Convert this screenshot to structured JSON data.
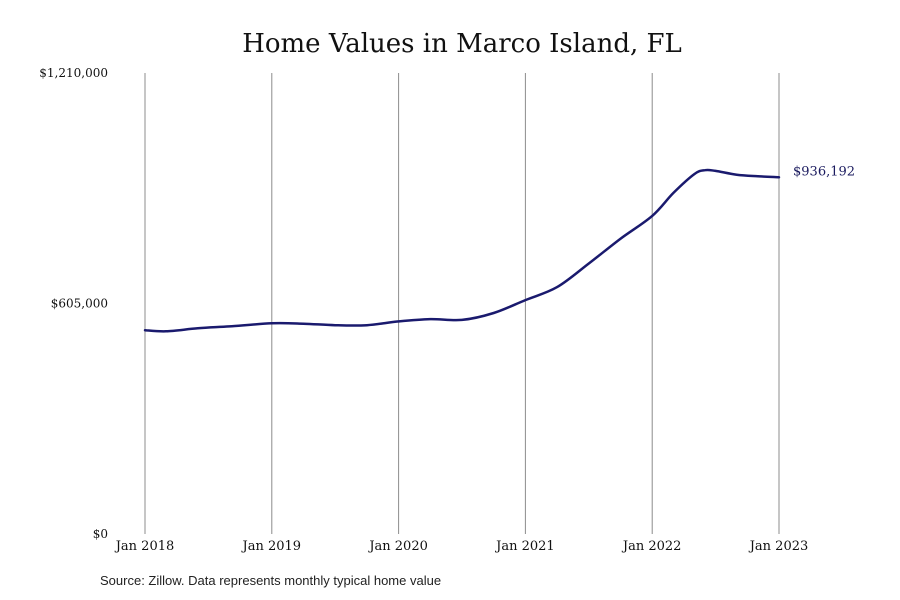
{
  "chart_data": {
    "type": "line",
    "title": "Home Values in Marco Island, FL",
    "xlabel": "",
    "ylabel": "",
    "x_tick_labels": [
      "Jan 2018",
      "Jan 2019",
      "Jan 2020",
      "Jan 2021",
      "Jan 2022",
      "Jan 2023"
    ],
    "y_tick_labels": [
      "$0",
      "$605,000",
      "$1,210,000"
    ],
    "ylim": [
      0,
      1210000
    ],
    "xlim": [
      "2018-01",
      "2023-01"
    ],
    "grid": "vertical lines at each January",
    "series_color": "#1a1a6e",
    "series": [
      {
        "points": [
          {
            "date": "2018-01",
            "value": 535000
          },
          {
            "date": "2018-03",
            "value": 532000
          },
          {
            "date": "2018-06",
            "value": 540000
          },
          {
            "date": "2018-09",
            "value": 545000
          },
          {
            "date": "2019-01",
            "value": 553000
          },
          {
            "date": "2019-04",
            "value": 552000
          },
          {
            "date": "2019-07",
            "value": 548000
          },
          {
            "date": "2019-10",
            "value": 548000
          },
          {
            "date": "2020-01",
            "value": 558000
          },
          {
            "date": "2020-04",
            "value": 564000
          },
          {
            "date": "2020-07",
            "value": 562000
          },
          {
            "date": "2020-10",
            "value": 580000
          },
          {
            "date": "2021-01",
            "value": 614000
          },
          {
            "date": "2021-04",
            "value": 648000
          },
          {
            "date": "2021-07",
            "value": 710000
          },
          {
            "date": "2021-10",
            "value": 775000
          },
          {
            "date": "2022-01",
            "value": 835000
          },
          {
            "date": "2022-03",
            "value": 895000
          },
          {
            "date": "2022-05",
            "value": 945000
          },
          {
            "date": "2022-06",
            "value": 955000
          },
          {
            "date": "2022-07",
            "value": 953000
          },
          {
            "date": "2022-09",
            "value": 943000
          },
          {
            "date": "2022-11",
            "value": 939000
          },
          {
            "date": "2023-01",
            "value": 936192
          }
        ]
      }
    ],
    "end_label": "$936,192"
  },
  "source_note": "Source: Zillow. Data represents monthly typical home value"
}
